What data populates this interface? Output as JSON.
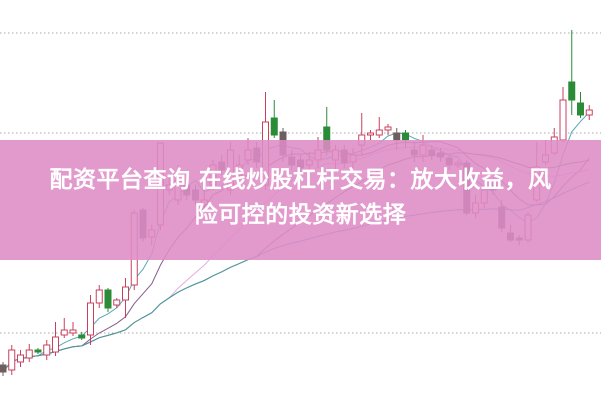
{
  "banner": {
    "line1": "配资平台查询 在线炒股杠杆交易：放大收益，风",
    "line2": "险可控的投资新选择",
    "background": "#de8cc6"
  },
  "chart_data": {
    "type": "candlestick",
    "grid": true,
    "colors": {
      "up": "#c8405e",
      "down_green": "#2a8c36",
      "down_gray": "#6e5e60"
    },
    "moving_averages": [
      {
        "period": 5,
        "color": "#5aa6b8"
      },
      {
        "period": 10,
        "color": "#8a5a8e"
      },
      {
        "period": 20,
        "color": "#e6a8e0"
      },
      {
        "period": 30,
        "color": "#6a7a4a"
      },
      {
        "period": 60,
        "color": "#4a9aa8"
      }
    ],
    "candles": [
      {
        "o": 35,
        "c": 28,
        "h": 38,
        "l": 24,
        "k": "gray"
      },
      {
        "o": 30,
        "c": 50,
        "h": 55,
        "l": 25
      },
      {
        "o": 38,
        "c": 45,
        "h": 50,
        "l": 33
      },
      {
        "o": 42,
        "c": 50,
        "h": 56,
        "l": 38
      },
      {
        "o": 50,
        "c": 48,
        "h": 52,
        "l": 46,
        "k": "green"
      },
      {
        "o": 45,
        "c": 55,
        "h": 60,
        "l": 40
      },
      {
        "o": 48,
        "c": 63,
        "h": 78,
        "l": 44
      },
      {
        "o": 65,
        "c": 70,
        "h": 82,
        "l": 62
      },
      {
        "o": 67,
        "c": 70,
        "h": 78,
        "l": 64
      },
      {
        "o": 65,
        "c": 62,
        "h": 68,
        "l": 60,
        "k": "green"
      },
      {
        "o": 65,
        "c": 97,
        "h": 105,
        "l": 55
      },
      {
        "o": 97,
        "c": 110,
        "h": 115,
        "l": 92
      },
      {
        "o": 110,
        "c": 92,
        "h": 112,
        "l": 88,
        "k": "green"
      },
      {
        "o": 95,
        "c": 100,
        "h": 102,
        "l": 92
      },
      {
        "o": 100,
        "c": 113,
        "h": 122,
        "l": 82
      },
      {
        "o": 115,
        "c": 187,
        "h": 190,
        "l": 110
      },
      {
        "o": 190,
        "c": 162,
        "h": 192,
        "l": 158,
        "k": "gray"
      },
      {
        "o": 163,
        "c": 170,
        "h": 175,
        "l": 155
      },
      {
        "o": 175,
        "c": 257,
        "h": 258,
        "l": 170
      },
      {
        "o": 210,
        "c": 215,
        "h": 222,
        "l": 205
      },
      {
        "o": 200,
        "c": 220,
        "h": 235,
        "l": 195
      },
      {
        "o": 215,
        "c": 205,
        "h": 222,
        "l": 200,
        "k": "gray"
      },
      {
        "o": 210,
        "c": 200,
        "h": 215,
        "l": 195,
        "k": "gray"
      },
      {
        "o": 195,
        "c": 200,
        "h": 210,
        "l": 190
      },
      {
        "o": 215,
        "c": 235,
        "h": 240,
        "l": 210
      },
      {
        "o": 238,
        "c": 230,
        "h": 245,
        "l": 225,
        "k": "gray"
      },
      {
        "o": 210,
        "c": 250,
        "h": 258,
        "l": 205
      },
      {
        "o": 225,
        "c": 235,
        "h": 245,
        "l": 220
      },
      {
        "o": 240,
        "c": 250,
        "h": 262,
        "l": 235
      },
      {
        "o": 252,
        "c": 238,
        "h": 258,
        "l": 232,
        "k": "gray"
      },
      {
        "o": 215,
        "c": 278,
        "h": 308,
        "l": 210
      },
      {
        "o": 282,
        "c": 265,
        "h": 300,
        "l": 262,
        "k": "green"
      },
      {
        "o": 268,
        "c": 245,
        "h": 272,
        "l": 238,
        "k": "gray"
      },
      {
        "o": 243,
        "c": 235,
        "h": 250,
        "l": 230,
        "k": "gray"
      },
      {
        "o": 240,
        "c": 232,
        "h": 245,
        "l": 225,
        "k": "gray"
      },
      {
        "o": 235,
        "c": 240,
        "h": 248,
        "l": 228
      },
      {
        "o": 240,
        "c": 250,
        "h": 263,
        "l": 232
      },
      {
        "o": 273,
        "c": 250,
        "h": 293,
        "l": 245,
        "k": "green"
      },
      {
        "o": 240,
        "c": 250,
        "h": 255,
        "l": 230
      },
      {
        "o": 250,
        "c": 237,
        "h": 255,
        "l": 232,
        "k": "gray"
      },
      {
        "o": 238,
        "c": 245,
        "h": 252,
        "l": 232
      },
      {
        "o": 255,
        "c": 265,
        "h": 287,
        "l": 245
      },
      {
        "o": 265,
        "c": 267,
        "h": 270,
        "l": 260
      },
      {
        "o": 265,
        "c": 270,
        "h": 283,
        "l": 262
      },
      {
        "o": 270,
        "c": 273,
        "h": 276,
        "l": 265
      },
      {
        "o": 267,
        "c": 260,
        "h": 272,
        "l": 250,
        "k": "gray"
      },
      {
        "o": 267,
        "c": 260,
        "h": 270,
        "l": 252,
        "k": "green"
      },
      {
        "o": 250,
        "c": 245,
        "h": 258,
        "l": 238,
        "k": "gray"
      },
      {
        "o": 245,
        "c": 255,
        "h": 265,
        "l": 238
      },
      {
        "o": 250,
        "c": 245,
        "h": 255,
        "l": 240,
        "k": "gray"
      },
      {
        "o": 247,
        "c": 243,
        "h": 252,
        "l": 238,
        "k": "gray"
      },
      {
        "o": 242,
        "c": 235,
        "h": 245,
        "l": 230,
        "k": "gray"
      },
      {
        "o": 235,
        "c": 237,
        "h": 240,
        "l": 232
      },
      {
        "o": 237,
        "c": 187,
        "h": 240,
        "l": 185,
        "k": "gray"
      },
      {
        "o": 187,
        "c": 197,
        "h": 205,
        "l": 182
      },
      {
        "o": 197,
        "c": 210,
        "h": 215,
        "l": 192
      },
      {
        "o": 217,
        "c": 210,
        "h": 222,
        "l": 205,
        "k": "gray"
      },
      {
        "o": 193,
        "c": 172,
        "h": 200,
        "l": 168,
        "k": "gray"
      },
      {
        "o": 167,
        "c": 160,
        "h": 175,
        "l": 158,
        "k": "gray"
      },
      {
        "o": 162,
        "c": 160,
        "h": 165,
        "l": 155,
        "k": "gray"
      },
      {
        "o": 160,
        "c": 185,
        "h": 188,
        "l": 157
      },
      {
        "o": 200,
        "c": 233,
        "h": 258,
        "l": 198
      },
      {
        "o": 238,
        "c": 245,
        "h": 260,
        "l": 235
      },
      {
        "o": 247,
        "c": 263,
        "h": 272,
        "l": 245
      },
      {
        "o": 260,
        "c": 300,
        "h": 313,
        "l": 258
      },
      {
        "o": 318,
        "c": 300,
        "h": 370,
        "l": 285,
        "k": "green"
      },
      {
        "o": 297,
        "c": 285,
        "h": 308,
        "l": 282,
        "k": "green"
      },
      {
        "o": 285,
        "c": 290,
        "h": 295,
        "l": 280
      }
    ],
    "gridlines": [
      367,
      267,
      67
    ]
  }
}
